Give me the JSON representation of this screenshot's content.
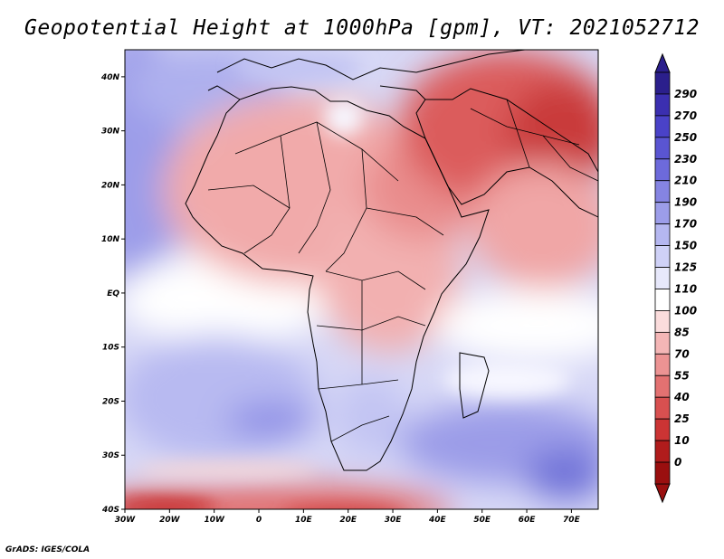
{
  "title": "Geopotential Height at 1000hPa [gpm], VT: 2021052712",
  "credit": "GrADS: IGES/COLA",
  "map": {
    "region": "Africa / Middle East",
    "lon_range": [
      -30,
      76
    ],
    "lat_range": [
      -40,
      45
    ],
    "lat_labels": [
      "40N",
      "30N",
      "20N",
      "10N",
      "EQ",
      "10S",
      "20S",
      "30S",
      "40S"
    ],
    "lon_labels": [
      "30W",
      "20W",
      "10W",
      "0",
      "10E",
      "20E",
      "30E",
      "40E",
      "50E",
      "60E",
      "70E"
    ]
  },
  "colorbar": {
    "labels": [
      "290",
      "270",
      "250",
      "230",
      "210",
      "190",
      "170",
      "150",
      "125",
      "110",
      "100",
      "85",
      "70",
      "55",
      "40",
      "25",
      "10",
      "0"
    ],
    "colors": [
      "#2b1f8c",
      "#3b2fb0",
      "#4a42c8",
      "#5a55d2",
      "#6d6adb",
      "#8584e2",
      "#9c9de9",
      "#b5b7f0",
      "#cfd1f7",
      "#e7e8fb",
      "#ffffff",
      "#fbdcdc",
      "#f4b6b6",
      "#ec9393",
      "#e37171",
      "#d85050",
      "#cb3434",
      "#b01c1c",
      "#9a0f0f"
    ]
  }
}
